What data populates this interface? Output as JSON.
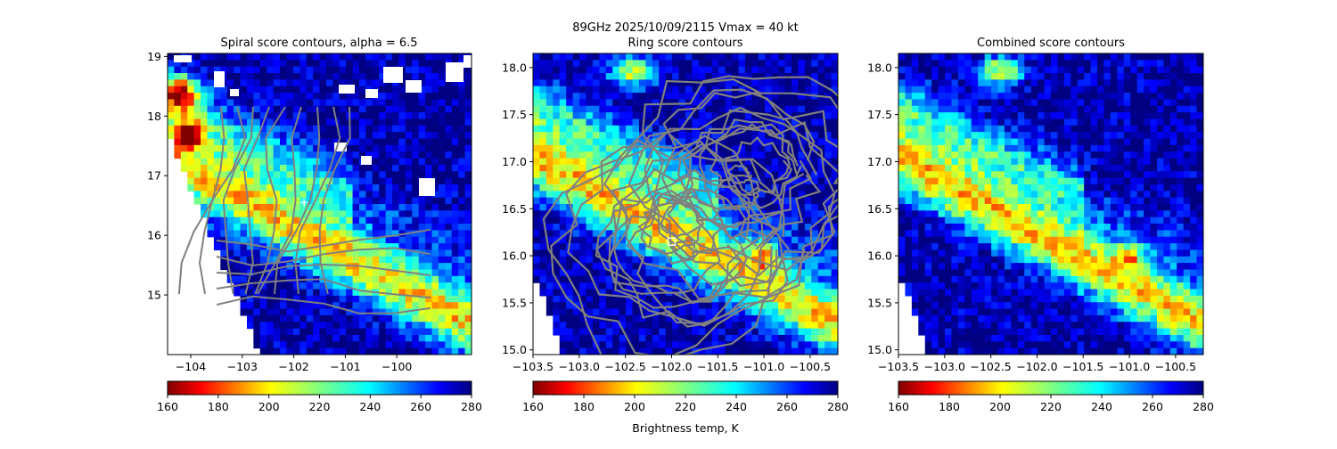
{
  "suptitle": "89GHz  2025/10/09/2115    Vmax = 40 kt",
  "colorbar_label": "Brightness temp, K",
  "colormap": "jet_r",
  "chart_data": [
    {
      "type": "heatmap",
      "title": "Spiral score contours, alpha =  6.5",
      "x_ticks": [
        -104,
        -103,
        -102,
        -101,
        -100
      ],
      "y_ticks": [
        15,
        16,
        17,
        18,
        19
      ],
      "xlim": [
        -104.45,
        -98.55
      ],
      "ylim": [
        14.0,
        19.05
      ],
      "colorbar": {
        "ticks": [
          160,
          180,
          200,
          220,
          240,
          260,
          280
        ],
        "range": [
          160,
          280
        ]
      },
      "center_marker": {
        "symbol": "plus",
        "lon": -101.8,
        "lat": 16.55,
        "color": "#ffffff"
      },
      "contour_color": "#808080"
    },
    {
      "type": "heatmap",
      "title": "Ring score contours",
      "x_ticks": [
        -103.5,
        -103.0,
        -102.5,
        -102.0,
        -101.5,
        -101.0,
        -100.5
      ],
      "x_tick_labels": [
        "−103.5",
        "−103.0",
        "−102.5",
        "−102.0",
        "−101.5",
        "−101.0",
        "−100.5"
      ],
      "y_ticks": [
        15.0,
        15.5,
        16.0,
        16.5,
        17.0,
        17.5,
        18.0
      ],
      "y_tick_labels": [
        "15.0",
        "15.5",
        "16.0",
        "16.5",
        "17.0",
        "17.5",
        "18.0"
      ],
      "xlim": [
        -103.5,
        -100.2
      ],
      "ylim": [
        14.95,
        18.15
      ],
      "colorbar": {
        "ticks": [
          160,
          180,
          200,
          220,
          240,
          260,
          280
        ],
        "range": [
          160,
          280
        ]
      },
      "center_marker": {
        "symbol": "square",
        "lon": -102.0,
        "lat": 16.15,
        "color": "#ffffff"
      },
      "contour_color": "#808080"
    },
    {
      "type": "heatmap",
      "title": "Combined score contours",
      "x_ticks": [
        -103.5,
        -103.0,
        -102.5,
        -102.0,
        -101.5,
        -101.0,
        -100.5
      ],
      "x_tick_labels": [
        "−103.5",
        "−103.0",
        "−102.5",
        "−102.0",
        "−101.5",
        "−101.0",
        "−100.5"
      ],
      "y_ticks": [
        15.0,
        15.5,
        16.0,
        16.5,
        17.0,
        17.5,
        18.0
      ],
      "y_tick_labels": [
        "15.0",
        "15.5",
        "16.0",
        "16.5",
        "17.0",
        "17.5",
        "18.0"
      ],
      "xlim": [
        -103.5,
        -100.2
      ],
      "ylim": [
        14.95,
        18.15
      ],
      "colorbar": {
        "ticks": [
          160,
          180,
          200,
          220,
          240,
          260,
          280
        ],
        "range": [
          160,
          280
        ]
      }
    }
  ]
}
